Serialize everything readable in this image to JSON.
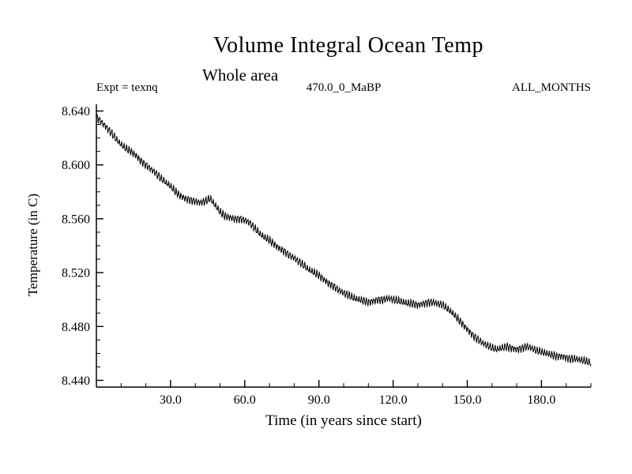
{
  "chart_data": {
    "type": "line",
    "title": "Volume Integral Ocean Temp",
    "subtitle": "Whole area",
    "annotations": {
      "left": "Expt = texnq",
      "center": "470.0_0_MaBP",
      "right": "ALL_MONTHS"
    },
    "xlabel": "Time (in years since start)",
    "ylabel": "Temperature (in C)",
    "xlim": [
      0,
      200
    ],
    "ylim": [
      8.435,
      8.645
    ],
    "x_major_ticks": [
      30,
      60,
      90,
      120,
      150,
      180
    ],
    "x_tick_labels": [
      "30.0",
      "60.0",
      "90.0",
      "120.0",
      "150.0",
      "180.0"
    ],
    "x_minor_step": 10,
    "y_major_ticks": [
      8.44,
      8.48,
      8.52,
      8.56,
      8.6,
      8.64
    ],
    "y_tick_labels": [
      "8.440",
      "8.480",
      "8.520",
      "8.560",
      "8.600",
      "8.640"
    ],
    "y_minor_step": 0.01,
    "line_color": "#000000",
    "background_color": "#ffffff",
    "grid": false,
    "legend": false,
    "monthly_oscillation": {
      "amplitude": 0.002,
      "period_years": 1.0,
      "noise_amplitude": 0.0008
    },
    "series": [
      {
        "name": "volume-integral-ocean-temperature",
        "x_start": 0,
        "x_step": 2,
        "y": [
          8.636,
          8.632,
          8.628,
          8.624,
          8.619,
          8.615,
          8.612,
          8.61,
          8.607,
          8.603,
          8.6,
          8.597,
          8.594,
          8.59,
          8.587,
          8.584,
          8.58,
          8.577,
          8.575,
          8.574,
          8.573,
          8.572,
          8.573,
          8.575,
          8.57,
          8.565,
          8.562,
          8.561,
          8.56,
          8.56,
          8.559,
          8.557,
          8.553,
          8.549,
          8.546,
          8.544,
          8.541,
          8.538,
          8.536,
          8.533,
          8.531,
          8.528,
          8.525,
          8.522,
          8.52,
          8.518,
          8.515,
          8.512,
          8.51,
          8.507,
          8.505,
          8.503,
          8.501,
          8.5,
          8.499,
          8.498,
          8.499,
          8.5,
          8.5,
          8.501,
          8.5,
          8.499,
          8.498,
          8.497,
          8.497,
          8.496,
          8.497,
          8.498,
          8.498,
          8.497,
          8.496,
          8.493,
          8.49,
          8.486,
          8.482,
          8.478,
          8.474,
          8.471,
          8.468,
          8.466,
          8.464,
          8.463,
          8.464,
          8.465,
          8.464,
          8.463,
          8.464,
          8.465,
          8.464,
          8.462,
          8.461,
          8.46,
          8.459,
          8.458,
          8.458,
          8.457,
          8.456,
          8.456,
          8.455,
          8.454,
          8.453
        ]
      }
    ]
  }
}
